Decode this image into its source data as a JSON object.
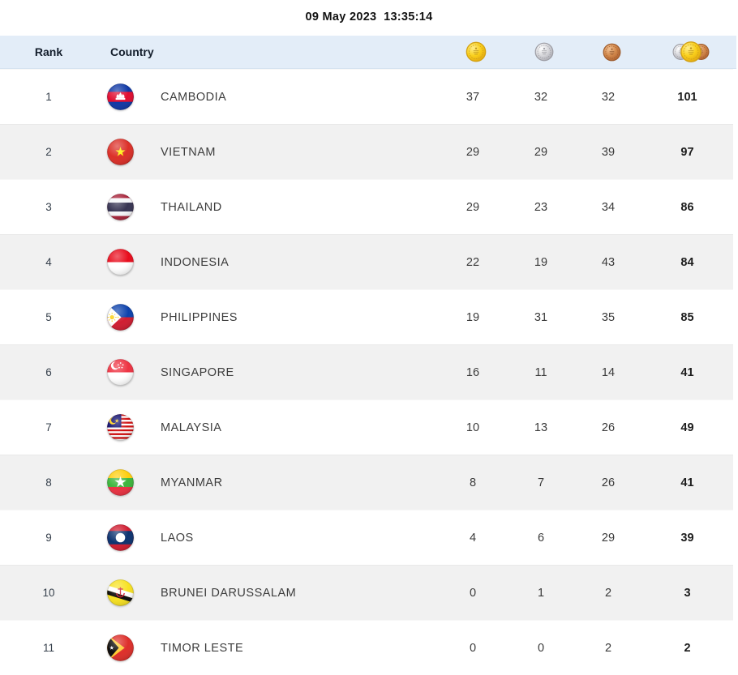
{
  "timestamp": "09 May 2023  13:35:14",
  "colors": {
    "header_bg": "#e3edf8",
    "row_bg": "#ffffff",
    "row_alt_bg": "#f1f1f1",
    "header_text": "#141e2c",
    "body_text": "#3d3d3d",
    "total_text": "#1c1c1c",
    "gold": "#f9cf1b",
    "silver": "#c9c9ce",
    "bronze": "#cd8148"
  },
  "table": {
    "headers": {
      "rank": "Rank",
      "country": "Country"
    },
    "medal_columns": [
      {
        "id": "gold",
        "icon": "gold-medal-icon"
      },
      {
        "id": "silver",
        "icon": "silver-medal-icon"
      },
      {
        "id": "bronze",
        "icon": "bronze-medal-icon"
      },
      {
        "id": "total",
        "icon": "total-medals-icon"
      }
    ],
    "rows": [
      {
        "rank": 1,
        "flag": "cambodia",
        "country": "CAMBODIA",
        "gold": 37,
        "silver": 32,
        "bronze": 32,
        "total": 101
      },
      {
        "rank": 2,
        "flag": "vietnam",
        "country": "VIETNAM",
        "gold": 29,
        "silver": 29,
        "bronze": 39,
        "total": 97
      },
      {
        "rank": 3,
        "flag": "thailand",
        "country": "THAILAND",
        "gold": 29,
        "silver": 23,
        "bronze": 34,
        "total": 86
      },
      {
        "rank": 4,
        "flag": "indonesia",
        "country": "INDONESIA",
        "gold": 22,
        "silver": 19,
        "bronze": 43,
        "total": 84
      },
      {
        "rank": 5,
        "flag": "philippines",
        "country": "PHILIPPINES",
        "gold": 19,
        "silver": 31,
        "bronze": 35,
        "total": 85
      },
      {
        "rank": 6,
        "flag": "singapore",
        "country": "SINGAPORE",
        "gold": 16,
        "silver": 11,
        "bronze": 14,
        "total": 41
      },
      {
        "rank": 7,
        "flag": "malaysia",
        "country": "MALAYSIA",
        "gold": 10,
        "silver": 13,
        "bronze": 26,
        "total": 49
      },
      {
        "rank": 8,
        "flag": "myanmar",
        "country": "MYANMAR",
        "gold": 8,
        "silver": 7,
        "bronze": 26,
        "total": 41
      },
      {
        "rank": 9,
        "flag": "laos",
        "country": "LAOS",
        "gold": 4,
        "silver": 6,
        "bronze": 29,
        "total": 39
      },
      {
        "rank": 10,
        "flag": "brunei",
        "country": "BRUNEI DARUSSALAM",
        "gold": 0,
        "silver": 1,
        "bronze": 2,
        "total": 3
      },
      {
        "rank": 11,
        "flag": "timor-leste",
        "country": "TIMOR LESTE",
        "gold": 0,
        "silver": 0,
        "bronze": 2,
        "total": 2
      }
    ]
  }
}
